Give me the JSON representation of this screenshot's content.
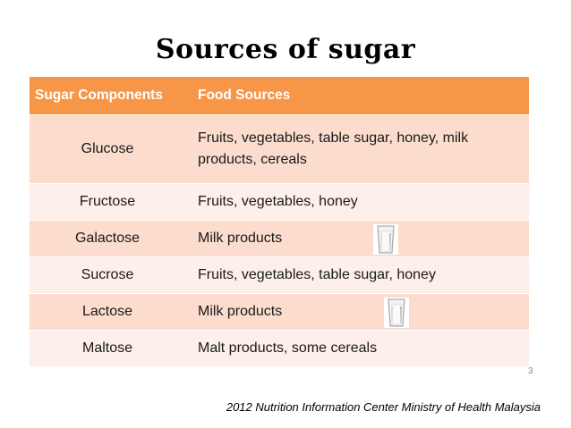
{
  "title": "Sources of sugar",
  "table": {
    "headers": [
      "Sugar Components",
      "Food Sources"
    ],
    "rows": [
      {
        "component": "Glucose",
        "sources": "Fruits, vegetables, table sugar, honey, milk products, cereals"
      },
      {
        "component": "Fructose",
        "sources": "Fruits, vegetables, honey"
      },
      {
        "component": "Galactose",
        "sources": "Milk products",
        "icon": "milk-glass-icon"
      },
      {
        "component": "Sucrose",
        "sources": "Fruits, vegetables, table sugar, honey"
      },
      {
        "component": "Lactose",
        "sources": "Milk products",
        "icon": "milk-glass-icon"
      },
      {
        "component": "Maltose",
        "sources": "Malt products, some cereals"
      }
    ]
  },
  "page_number": "3",
  "footer": "2012 Nutrition Information Center Ministry of Health Malaysia",
  "colors": {
    "header": "#f79646",
    "row_dark": "#fbdccd",
    "row_light": "#fdefe9"
  }
}
